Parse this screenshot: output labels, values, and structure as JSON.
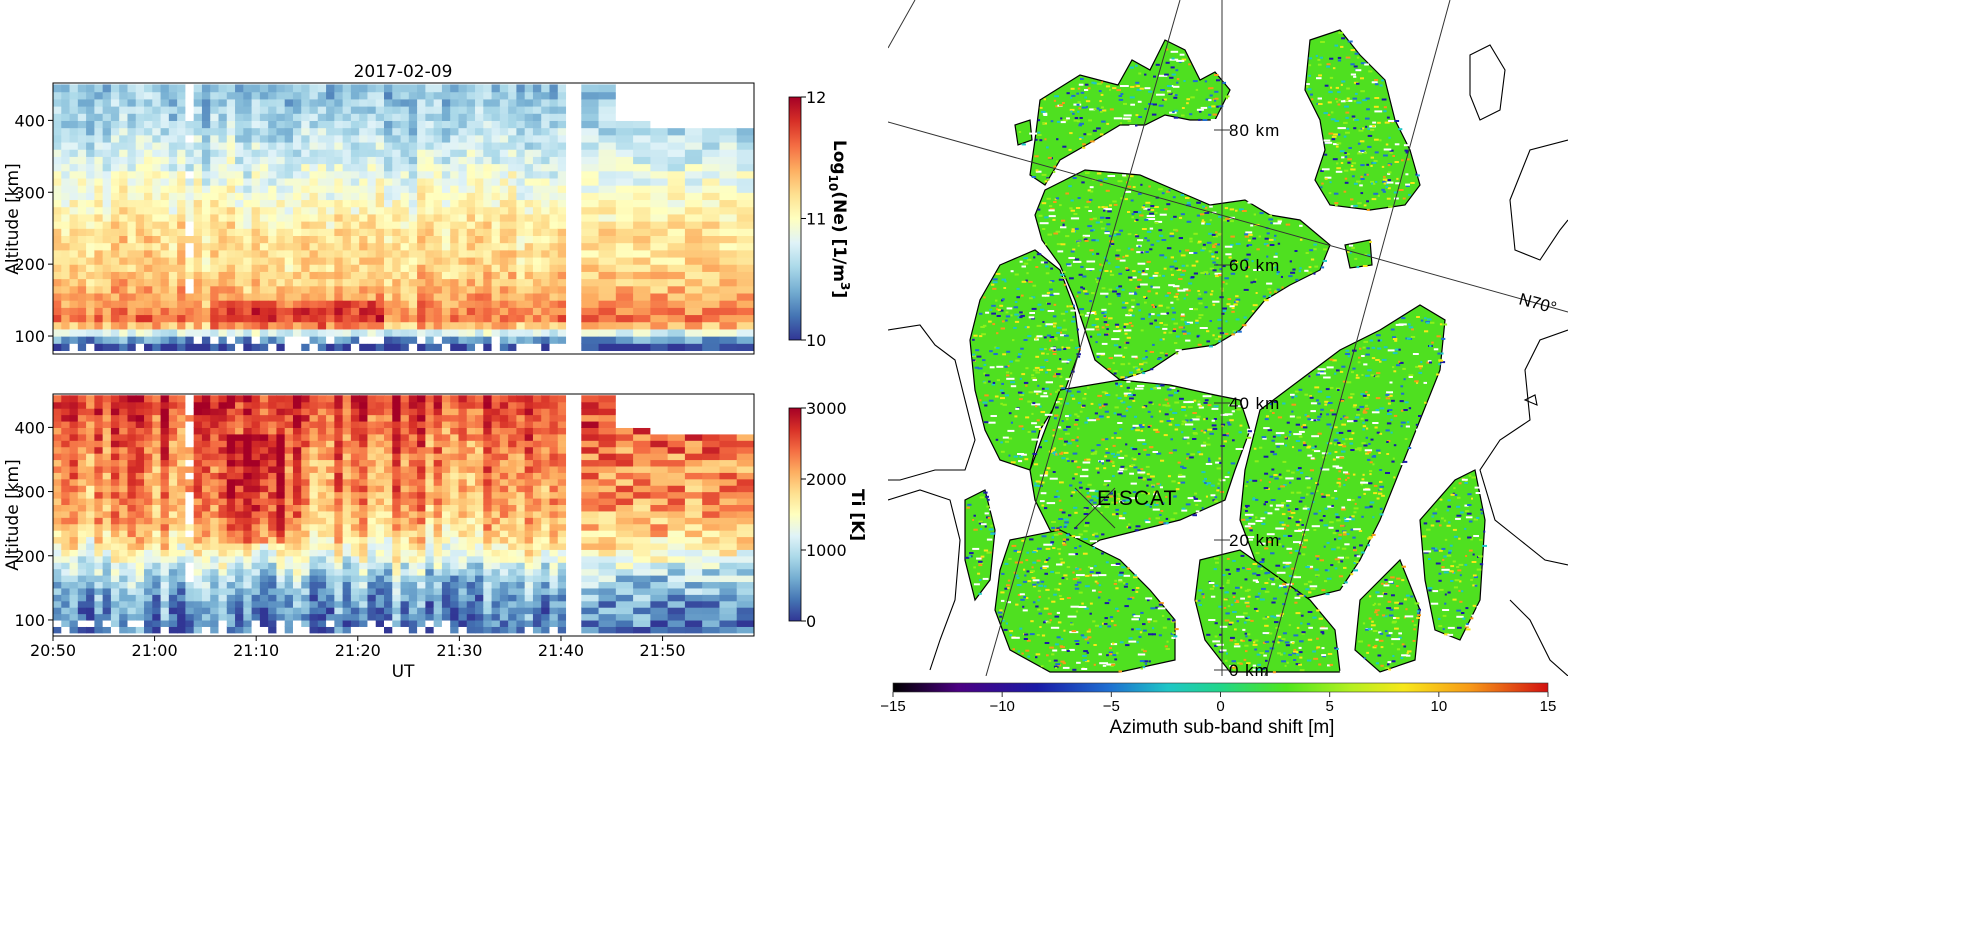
{
  "chart_data": [
    {
      "type": "heatmap",
      "title": "2017-02-09",
      "ylabel": "Altitude [km]",
      "xlabel": "",
      "yticks": [
        "100",
        "200",
        "300",
        "400"
      ],
      "ytick_values": [
        100,
        200,
        300,
        400
      ],
      "ylim": [
        75,
        452
      ],
      "colorbar": {
        "label_main": "Log",
        "label_sub": "10",
        "label_rest": "(Ne) [1/m",
        "label_sup": "3",
        "label_end": "]",
        "ticks": [
          "10",
          "11",
          "12"
        ],
        "tick_values": [
          10,
          11,
          12
        ],
        "range": [
          10,
          12
        ]
      },
      "colormap": "RdYlBu_r",
      "altitude_profile": [
        {
          "alt": 85,
          "value": 10.0
        },
        {
          "alt": 100,
          "value": 10.5
        },
        {
          "alt": 120,
          "value": 11.6
        },
        {
          "alt": 150,
          "value": 11.4
        },
        {
          "alt": 200,
          "value": 11.2
        },
        {
          "alt": 250,
          "value": 11.15
        },
        {
          "alt": 300,
          "value": 10.95
        },
        {
          "alt": 350,
          "value": 10.75
        },
        {
          "alt": 400,
          "value": 10.6
        },
        {
          "alt": 440,
          "value": 10.5
        }
      ]
    },
    {
      "type": "heatmap",
      "title": "",
      "ylabel": "Altitude [km]",
      "xlabel": "UT",
      "xticks": [
        "20:50",
        "21:00",
        "21:10",
        "21:20",
        "21:30",
        "21:40",
        "21:50"
      ],
      "xtick_values": [
        "20:50",
        "21:00",
        "21:10",
        "21:20",
        "21:30",
        "21:40",
        "21:50"
      ],
      "xlim": [
        "20:50",
        "21:59"
      ],
      "yticks": [
        "100",
        "200",
        "300",
        "400"
      ],
      "ytick_values": [
        100,
        200,
        300,
        400
      ],
      "ylim": [
        75,
        452
      ],
      "colorbar": {
        "label": "Ti [K]",
        "ticks": [
          "0",
          "1000",
          "2000",
          "3000"
        ],
        "tick_values": [
          0,
          1000,
          2000,
          3000
        ],
        "range": [
          0,
          3000
        ]
      },
      "colormap": "RdYlBu_r",
      "altitude_profile": [
        {
          "alt": 85,
          "value": 400
        },
        {
          "alt": 120,
          "value": 500
        },
        {
          "alt": 170,
          "value": 900
        },
        {
          "alt": 210,
          "value": 1600
        },
        {
          "alt": 260,
          "value": 2100
        },
        {
          "alt": 300,
          "value": 2200
        },
        {
          "alt": 350,
          "value": 2300
        },
        {
          "alt": 400,
          "value": 2500
        },
        {
          "alt": 440,
          "value": 2700
        }
      ]
    },
    {
      "type": "heatmap",
      "title": "",
      "colorbar": {
        "label": "Azimuth sub-band shift [m]",
        "ticks": [
          "−15",
          "−10",
          "−5",
          "0",
          "5",
          "10",
          "15"
        ],
        "tick_values": [
          -15,
          -10,
          -5,
          0,
          5,
          10,
          15
        ],
        "range": [
          -15,
          15
        ]
      },
      "colormap": "nipy_spectral",
      "annotations": [
        "80 km",
        "60 km",
        "40 km",
        "20 km",
        "0 km",
        "EISCAT",
        "N70°"
      ]
    }
  ]
}
